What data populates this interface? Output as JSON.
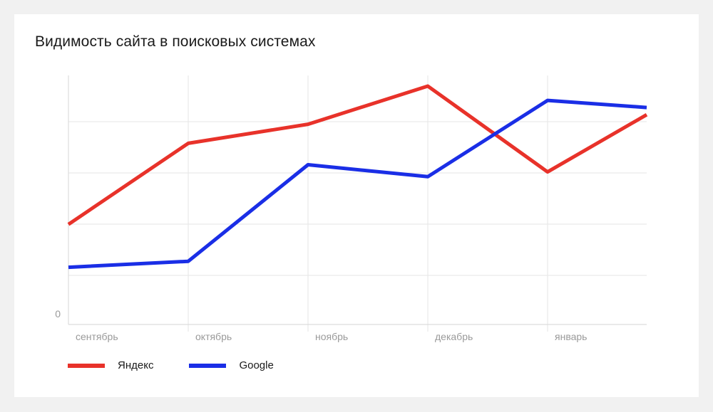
{
  "title": "Видимость сайта в поисковых системах",
  "chart_data": {
    "type": "line",
    "title": "Видимость сайта в поисковых системах",
    "categories": [
      "сентябрь",
      "октябрь",
      "ноябрь",
      "декабрь",
      "январь",
      ""
    ],
    "y_tick_labels": [
      "0"
    ],
    "ylim": [
      0,
      100
    ],
    "grid": true,
    "legend_position": "bottom-left",
    "series": [
      {
        "name": "Яндекс",
        "color": "#e8322a",
        "values": [
          42,
          76,
          84,
          100,
          64,
          88
        ]
      },
      {
        "name": "Google",
        "color": "#1a2ee6",
        "values": [
          24,
          26.5,
          67,
          62,
          94,
          91
        ]
      }
    ]
  }
}
